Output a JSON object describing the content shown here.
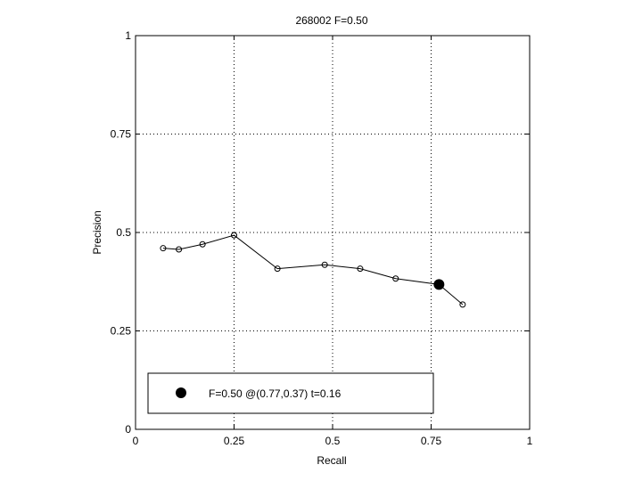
{
  "chart_data": {
    "type": "line",
    "title": "268002 F=0.50",
    "xlabel": "Recall",
    "ylabel": "Precision",
    "xlim": [
      0,
      1
    ],
    "ylim": [
      0,
      1
    ],
    "xticks": [
      0,
      0.25,
      0.5,
      0.75,
      1
    ],
    "yticks": [
      0,
      0.25,
      0.5,
      0.75,
      1
    ],
    "xtick_labels": [
      "0",
      "0.25",
      "0.5",
      "0.75",
      "1"
    ],
    "ytick_labels": [
      "0",
      "0.25",
      "0.5",
      "0.75",
      "1"
    ],
    "grid": true,
    "series": [
      {
        "points": [
          {
            "x": 0.07,
            "y": 0.46
          },
          {
            "x": 0.11,
            "y": 0.457
          },
          {
            "x": 0.17,
            "y": 0.47
          },
          {
            "x": 0.25,
            "y": 0.493
          },
          {
            "x": 0.36,
            "y": 0.408
          },
          {
            "x": 0.48,
            "y": 0.418
          },
          {
            "x": 0.57,
            "y": 0.408
          },
          {
            "x": 0.66,
            "y": 0.383
          },
          {
            "x": 0.77,
            "y": 0.368
          },
          {
            "x": 0.83,
            "y": 0.317
          }
        ]
      }
    ],
    "highlight": {
      "x": 0.77,
      "y": 0.368
    },
    "legend": {
      "position": "bottom",
      "label": "F=0.50 @(0.77,0.37) t=0.16"
    }
  }
}
